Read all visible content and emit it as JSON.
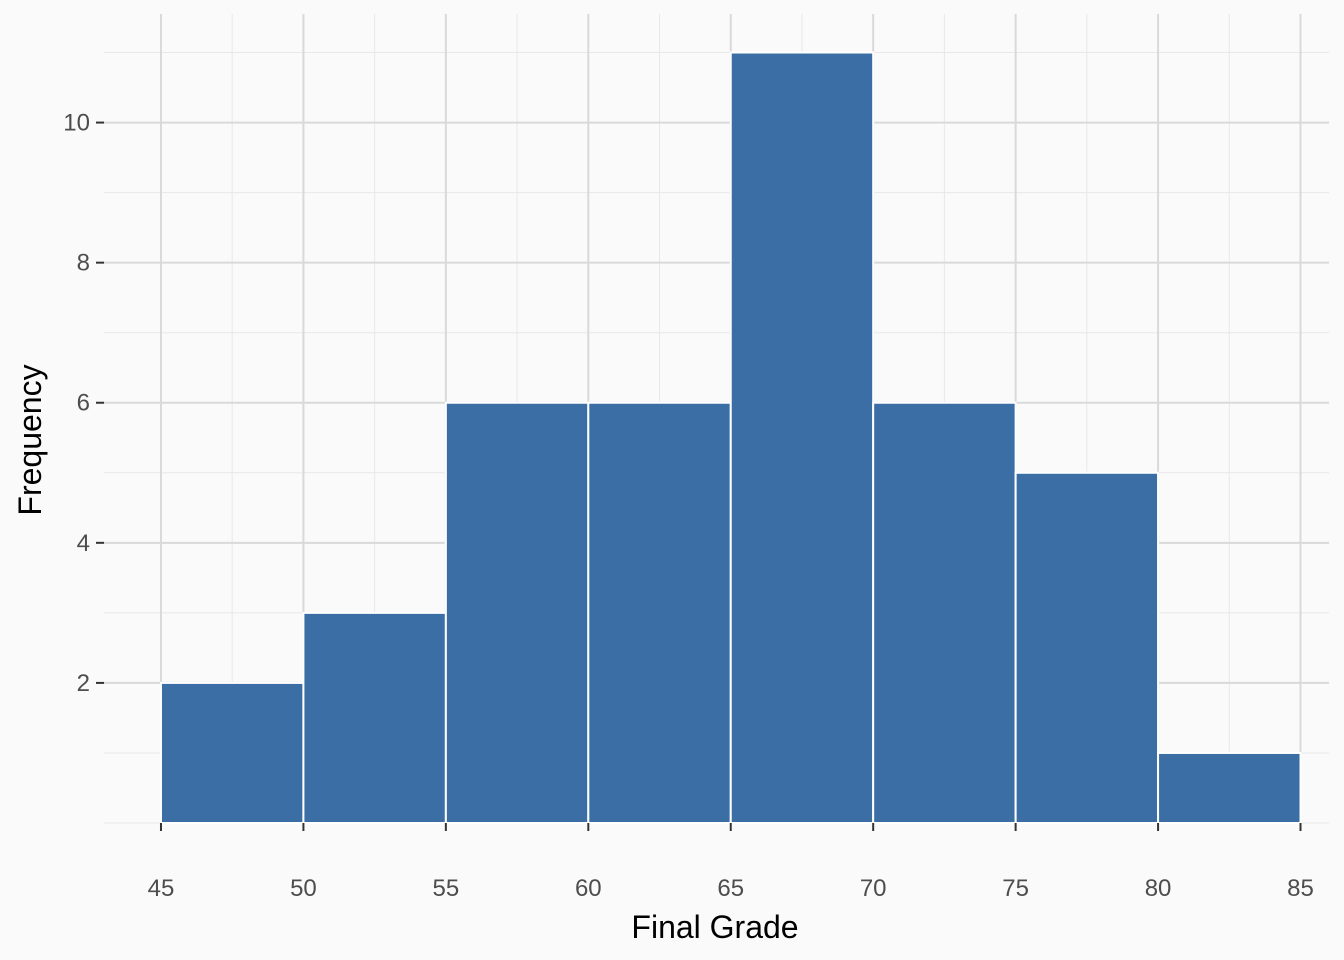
{
  "chart_data": {
    "type": "bar",
    "histogram": true,
    "bin_edges": [
      45,
      50,
      55,
      60,
      65,
      70,
      75,
      80,
      85
    ],
    "values": [
      2,
      3,
      6,
      6,
      11,
      6,
      5,
      1
    ],
    "xlabel": "Final Grade",
    "ylabel": "Frequency",
    "xlim": [
      43,
      86
    ],
    "ylim": [
      0,
      11.55
    ],
    "x_ticks": [
      45,
      50,
      55,
      60,
      65,
      70,
      75,
      80,
      85
    ],
    "y_ticks": [
      2,
      4,
      6,
      8,
      10
    ],
    "grid": true,
    "legend": "none",
    "colors": {
      "bar_fill": "#3a6ea5",
      "bar_outline": "#ffffff",
      "background": "#fafafa",
      "grid_major": "#d9d9d9",
      "grid_minor": "#e8e8e8",
      "tick_label": "#4d4d4d",
      "axis_title": "#000000"
    }
  }
}
